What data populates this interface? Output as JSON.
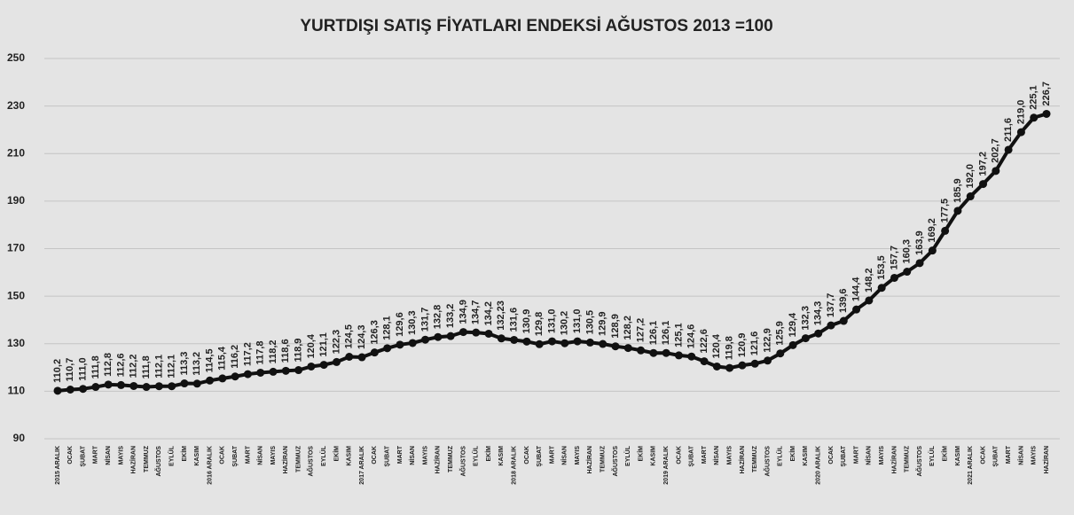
{
  "chart_data": {
    "type": "line",
    "title": "YURTDIŞI SATIŞ FİYATLARI ENDEKSİ AĞUSTOS 2013 =100",
    "categories": [
      "2015 ARALIK",
      "OCAK",
      "ŞUBAT",
      "MART",
      "NİSAN",
      "MAYIS",
      "HAZİRAN",
      "TEMMUZ",
      "AĞUSTOS",
      "EYLÜL",
      "EKİM",
      "KASIM",
      "2016 ARALIK",
      "OCAK",
      "ŞUBAT",
      "MART",
      "NİSAN",
      "MAYIS",
      "HAZİRAN",
      "TEMMUZ",
      "AĞUSTOS",
      "EYLÜL",
      "EKİM",
      "KASIM",
      "2017 ARALIK",
      "OCAK",
      "ŞUBAT",
      "MART",
      "NİSAN",
      "MAYIS",
      "HAZİRAN",
      "TEMMUZ",
      "AĞUSTOS",
      "EYLÜL",
      "EKİM",
      "KASIM",
      "2018 ARALIK",
      "OCAK",
      "ŞUBAT",
      "MART",
      "NİSAN",
      "MAYIS",
      "HAZİRAN",
      "TEMMUZ",
      "AĞUSTOS",
      "EYLÜL",
      "EKİM",
      "KASIM",
      "2019 ARALIK",
      "OCAK",
      "ŞUBAT",
      "MART",
      "NİSAN",
      "MAYIS",
      "HAZİRAN",
      "TEMMUZ",
      "AĞUSTOS",
      "EYLÜL",
      "EKİM",
      "KASIM",
      "2020 ARALIK",
      "OCAK",
      "ŞUBAT",
      "MART",
      "NİSAN",
      "MAYIS",
      "HAZİRAN",
      "TEMMUZ",
      "AĞUSTOS",
      "EYLÜL",
      "EKİM",
      "KASIM",
      "2021 ARALIK",
      "OCAK",
      "ŞUBAT",
      "MART",
      "NİSAN",
      "MAYIS",
      "HAZİRAN"
    ],
    "values": [
      110.2,
      110.7,
      111.0,
      111.8,
      112.8,
      112.6,
      112.2,
      111.8,
      112.1,
      112.1,
      113.3,
      113.2,
      114.5,
      115.4,
      116.2,
      117.2,
      117.8,
      118.2,
      118.6,
      118.9,
      120.4,
      121.1,
      122.3,
      124.5,
      124.3,
      126.3,
      128.1,
      129.6,
      130.3,
      131.7,
      132.8,
      133.2,
      134.9,
      134.7,
      134.2,
      132.23,
      131.6,
      130.9,
      129.8,
      131.0,
      130.2,
      131.0,
      130.5,
      129.9,
      128.9,
      128.2,
      127.2,
      126.1,
      126.1,
      125.1,
      124.6,
      122.6,
      120.4,
      119.8,
      120.9,
      121.6,
      122.9,
      125.9,
      129.4,
      132.3,
      134.3,
      137.7,
      139.6,
      144.4,
      148.2,
      153.5,
      157.7,
      160.3,
      163.9,
      169.2,
      177.5,
      185.9,
      192.0,
      197.2,
      202.7,
      211.6,
      219.0,
      225.1,
      226.7
    ],
    "value_labels": [
      "110,2",
      "110,7",
      "111,0",
      "111,8",
      "112,8",
      "112,6",
      "112,2",
      "111,8",
      "112,1",
      "112,1",
      "113,3",
      "113,2",
      "114,5",
      "115,4",
      "116,2",
      "117,2",
      "117,8",
      "118,2",
      "118,6",
      "118,9",
      "120,4",
      "121,1",
      "122,3",
      "124,5",
      "124,3",
      "126,3",
      "128,1",
      "129,6",
      "130,3",
      "131,7",
      "132,8",
      "133,2",
      "134,9",
      "134,7",
      "134,2",
      "132,23",
      "131,6",
      "130,9",
      "129,8",
      "131,0",
      "130,2",
      "131,0",
      "130,5",
      "129,9",
      "128,9",
      "128,2",
      "127,2",
      "126,1",
      "126,1",
      "125,1",
      "124,6",
      "122,6",
      "120,4",
      "119,8",
      "120,9",
      "121,6",
      "122,9",
      "125,9",
      "129,4",
      "132,3",
      "134,3",
      "137,7",
      "139,6",
      "144,4",
      "148,2",
      "153,5",
      "157,7",
      "160,3",
      "163,9",
      "169,2",
      "177,5",
      "185,9",
      "192,0",
      "197,2",
      "202,7",
      "211,6",
      "219,0",
      "225,1",
      "226,7"
    ],
    "color": "#111111",
    "ylim": [
      90,
      250
    ],
    "yticks": [
      90,
      110,
      130,
      150,
      170,
      190,
      210,
      230,
      250
    ],
    "grid": true
  }
}
